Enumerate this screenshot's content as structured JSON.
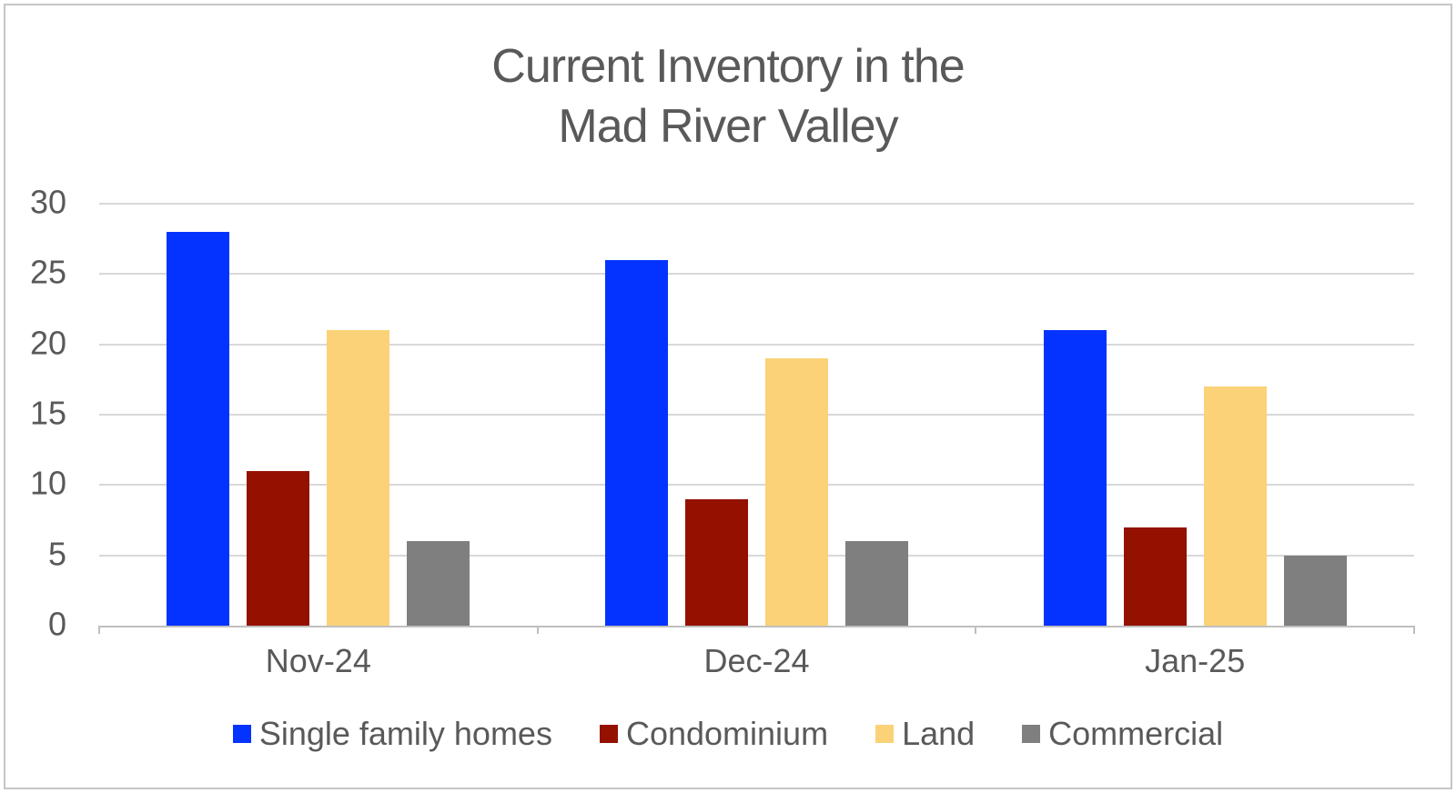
{
  "window": {
    "background": "#ffffff",
    "border_color": "#c6c6c6"
  },
  "chart_data": {
    "type": "bar",
    "title": "Current Inventory in the\nMad River Valley",
    "categories": [
      "Nov-24",
      "Dec-24",
      "Jan-25"
    ],
    "series": [
      {
        "name": "Single family homes",
        "color": "#0433ff",
        "values": [
          28,
          26,
          21
        ]
      },
      {
        "name": "Condominium",
        "color": "#941100",
        "values": [
          11,
          9,
          7
        ]
      },
      {
        "name": "Land",
        "color": "#fbd278",
        "values": [
          21,
          19,
          17
        ]
      },
      {
        "name": "Commercial",
        "color": "#7f7f7f",
        "values": [
          6,
          6,
          5
        ]
      }
    ],
    "xlabel": "",
    "ylabel": "",
    "ylim": [
      0,
      30
    ],
    "yticks": [
      30,
      25,
      20,
      15,
      10,
      5,
      0
    ],
    "grid": "horizontal",
    "gridline_color": "#d8d8d8",
    "axis_color": "#bfbfbf",
    "text_color": "#595959",
    "legend_position": "bottom"
  }
}
